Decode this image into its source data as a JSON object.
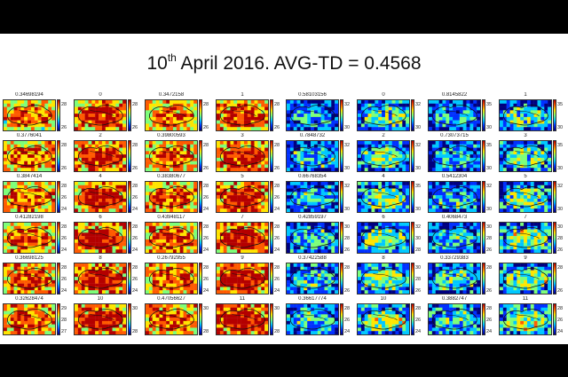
{
  "title": {
    "prefix": "10",
    "sup": "th",
    "rest": " April 2016. AVG-TD = 0.4568"
  },
  "colormap": [
    "#00007f",
    "#0030ff",
    "#00c8ff",
    "#7dff7a",
    "#ffe500",
    "#ff5a00",
    "#b40000"
  ],
  "outline_color": "#111111",
  "left_group": {
    "rows": [
      {
        "left_label": "0.34698194",
        "right_label": "0",
        "left2_label": "0.3472158",
        "right2_label": "1",
        "ticks_a": [
          "28",
          "26"
        ],
        "ticks_b": [
          "28",
          "26"
        ],
        "ticks_c": [
          "28",
          "26"
        ],
        "ticks_d": [
          "28",
          "26"
        ]
      },
      {
        "left_label": "0.3776041",
        "right_label": "2",
        "left2_label": "0.39800593",
        "right2_label": "3",
        "ticks_a": [
          "28",
          "26"
        ],
        "ticks_b": [
          "28",
          "26"
        ],
        "ticks_c": [
          "28",
          "26"
        ],
        "ticks_d": [
          "28",
          "26"
        ]
      },
      {
        "left_label": "0.3847414",
        "right_label": "4",
        "left2_label": "0.38380677",
        "right2_label": "5",
        "ticks_a": [
          "28",
          "26",
          "24"
        ],
        "ticks_b": [
          "28",
          "26",
          "24"
        ],
        "ticks_c": [
          "28",
          "26",
          "24"
        ],
        "ticks_d": [
          "28",
          "26",
          "24"
        ]
      },
      {
        "left_label": "0.41282198",
        "right_label": "6",
        "left2_label": "0.43948117",
        "right2_label": "7",
        "ticks_a": [
          "28",
          "26",
          "24"
        ],
        "ticks_b": [
          "28",
          "26",
          "24"
        ],
        "ticks_c": [
          "28",
          "26",
          "24"
        ],
        "ticks_d": [
          "28",
          "26",
          "24"
        ]
      },
      {
        "left_label": "0.36698125",
        "right_label": "8",
        "left2_label": "0.26792955",
        "right2_label": "9",
        "ticks_a": [
          "28",
          "26",
          "24"
        ],
        "ticks_b": [
          "28",
          "26",
          "24"
        ],
        "ticks_c": [
          "28",
          "26",
          "24"
        ],
        "ticks_d": [
          "28",
          "26",
          "24"
        ]
      },
      {
        "left_label": "0.32628474",
        "right_label": "10",
        "left2_label": "0.47056627",
        "right2_label": "11",
        "ticks_a": [
          "29",
          "28",
          "27"
        ],
        "ticks_b": [
          "30",
          "28"
        ],
        "ticks_c": [
          "30",
          "28"
        ],
        "ticks_d": [
          "30",
          "28"
        ]
      }
    ]
  },
  "right_group": {
    "rows": [
      {
        "left_label": "0.58103156",
        "right_label": "0",
        "left2_label": "0.8145822",
        "right2_label": "1",
        "ticks_a": [
          "32",
          "30"
        ],
        "ticks_b": [
          "32",
          "30"
        ],
        "ticks_c": [
          "35",
          "30"
        ],
        "ticks_d": [
          "35",
          "30"
        ]
      },
      {
        "left_label": "0.7848732",
        "right_label": "2",
        "left2_label": "0.73073715",
        "right2_label": "3",
        "ticks_a": [
          "32",
          "30"
        ],
        "ticks_b": [
          "32",
          "30"
        ],
        "ticks_c": [
          "35",
          "30"
        ],
        "ticks_d": [
          "35",
          "30"
        ]
      },
      {
        "left_label": "0.66768354",
        "right_label": "4",
        "left2_label": "0.5412304",
        "right2_label": "5",
        "ticks_a": [
          "32",
          "30"
        ],
        "ticks_b": [
          "35",
          "30"
        ],
        "ticks_c": [
          "32",
          "30"
        ],
        "ticks_d": [
          "32",
          "30"
        ]
      },
      {
        "left_label": "0.42859197",
        "right_label": "6",
        "left2_label": "0.4068473",
        "right2_label": "7",
        "ticks_a": [
          "30",
          "28",
          "26"
        ],
        "ticks_b": [
          "32",
          "30",
          "28"
        ],
        "ticks_c": [
          "30",
          "28",
          "26"
        ],
        "ticks_d": [
          "30",
          "28",
          "26"
        ]
      },
      {
        "left_label": "0.37422588",
        "right_label": "8",
        "left2_label": "0.33729383",
        "right2_label": "9",
        "ticks_a": [
          "28",
          "26"
        ],
        "ticks_b": [
          "30",
          "28",
          "26"
        ],
        "ticks_c": [
          "28",
          "26"
        ],
        "ticks_d": [
          "28",
          "26"
        ]
      },
      {
        "left_label": "0.36617774",
        "right_label": "10",
        "left2_label": "0.3882747",
        "right2_label": "11",
        "ticks_a": [
          "28",
          "26",
          "24"
        ],
        "ticks_b": [
          "28",
          "26",
          "24"
        ],
        "ticks_c": [
          "28",
          "26",
          "24"
        ],
        "ticks_d": [
          "28",
          "26",
          "24"
        ]
      }
    ]
  }
}
